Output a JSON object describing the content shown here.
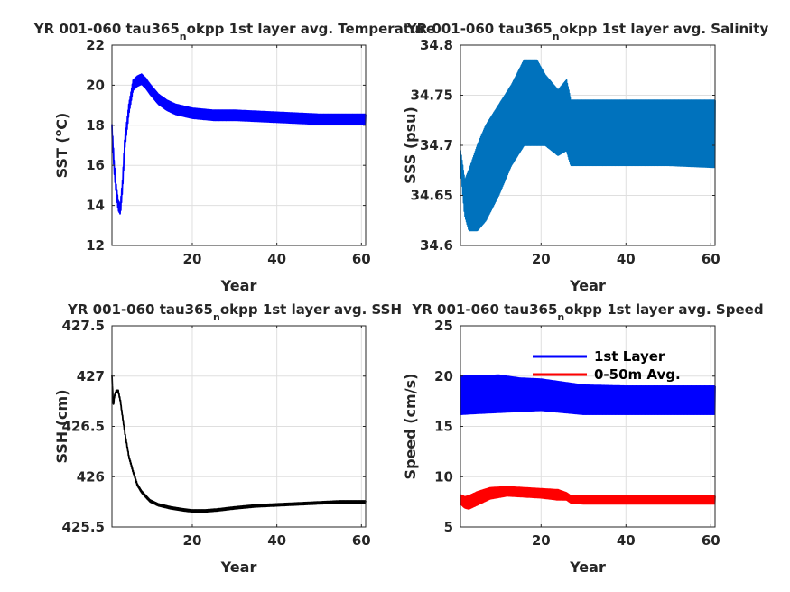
{
  "chart_data": [
    {
      "id": "sst",
      "type": "line",
      "title": "YR 001-060 tau365_nokpp 1st layer avg. Temperature",
      "title_parts": [
        "YR 001-060 tau365",
        "n",
        "okpp 1st layer avg. Temperature"
      ],
      "xlabel": "Year",
      "ylabel": "SST (°C)",
      "ylabel_parts": [
        "SST (",
        "o",
        "C)"
      ],
      "xlim": [
        1,
        61
      ],
      "ylim": [
        12,
        22
      ],
      "xticks": [
        20,
        40,
        60
      ],
      "yticks": [
        12,
        14,
        16,
        18,
        20,
        22
      ],
      "grid": true,
      "series": [
        {
          "color": "#0000ff",
          "oscillation": 0.25,
          "x": [
            1,
            1.5,
            2,
            2.5,
            3,
            3.5,
            4,
            5,
            6,
            7,
            8,
            9,
            10,
            12,
            14,
            16,
            20,
            25,
            30,
            40,
            50,
            61
          ],
          "y": [
            17.8,
            16,
            14.8,
            14,
            13.8,
            15,
            17,
            18.8,
            20,
            20.2,
            20.3,
            20.1,
            19.8,
            19.3,
            19,
            18.8,
            18.6,
            18.5,
            18.5,
            18.4,
            18.3,
            18.3
          ]
        }
      ]
    },
    {
      "id": "sss",
      "type": "line",
      "title": "YR 001-060 tau365_nokpp 1st layer avg. Salinity",
      "title_parts": [
        "YR 001-060 tau365",
        "n",
        "okpp 1st layer avg. Salinity"
      ],
      "xlabel": "Year",
      "ylabel": "SSS (psu)",
      "xlim": [
        1,
        61
      ],
      "ylim": [
        34.6,
        34.8
      ],
      "xticks": [
        20,
        40,
        60
      ],
      "yticks": [
        34.6,
        34.65,
        34.7,
        34.75,
        34.8
      ],
      "ytick_labels": [
        "34.6",
        "34.65",
        "34.7",
        "34.75",
        "34.8"
      ],
      "grid": true,
      "series": [
        {
          "color": "#0072bd",
          "x": [
            1,
            2,
            3,
            5,
            7,
            10,
            13,
            16,
            19,
            21,
            24,
            26,
            27,
            30,
            40,
            50,
            61
          ],
          "y_min": [
            34.68,
            34.63,
            34.615,
            34.615,
            34.625,
            34.65,
            34.68,
            34.7,
            34.7,
            34.7,
            34.69,
            34.695,
            34.68,
            34.68,
            34.68,
            34.68,
            34.678
          ],
          "y_max": [
            34.695,
            34.665,
            34.675,
            34.7,
            34.72,
            34.74,
            34.76,
            34.785,
            34.785,
            34.77,
            34.755,
            34.765,
            34.745,
            34.745,
            34.745,
            34.745,
            34.745
          ]
        }
      ]
    },
    {
      "id": "ssh",
      "type": "line",
      "title": "YR 001-060 tau365_nokpp 1st layer avg. SSH",
      "title_parts": [
        "YR 001-060 tau365",
        "n",
        "okpp 1st layer avg. SSH"
      ],
      "xlabel": "Year",
      "ylabel": "SSH (cm)",
      "xlim": [
        1,
        61
      ],
      "ylim": [
        425.5,
        427.5
      ],
      "xticks": [
        20,
        40,
        60
      ],
      "yticks": [
        425.5,
        426,
        426.5,
        427,
        427.5
      ],
      "ytick_labels": [
        "425.5",
        "426",
        "426.5",
        "427",
        "427.5"
      ],
      "grid": true,
      "series": [
        {
          "color": "#000000",
          "oscillation": 0.01,
          "x": [
            1,
            1.3,
            1.6,
            2,
            2.5,
            3,
            4,
            5,
            6,
            7,
            8,
            10,
            12,
            15,
            18,
            20,
            23,
            26,
            30,
            35,
            40,
            45,
            50,
            55,
            61
          ],
          "y": [
            427,
            426.7,
            426.8,
            426.85,
            426.85,
            426.75,
            426.45,
            426.2,
            426.05,
            425.92,
            425.85,
            425.76,
            425.72,
            425.69,
            425.67,
            425.66,
            425.66,
            425.67,
            425.69,
            425.71,
            425.72,
            425.73,
            425.74,
            425.75,
            425.75
          ]
        }
      ]
    },
    {
      "id": "speed",
      "type": "line",
      "title": "YR 001-060 tau365_nokpp 1st layer avg. Speed",
      "title_parts": [
        "YR 001-060 tau365",
        "n",
        "okpp 1st layer avg. Speed"
      ],
      "xlabel": "Year",
      "ylabel": "Speed (cm/s)",
      "xlim": [
        1,
        61
      ],
      "ylim": [
        5,
        25
      ],
      "xticks": [
        20,
        40,
        60
      ],
      "yticks": [
        5,
        10,
        15,
        20,
        25
      ],
      "grid": true,
      "legend_position": "top-right",
      "series": [
        {
          "name": "1st Layer",
          "color": "#0000ff",
          "x": [
            1,
            5,
            10,
            15,
            20,
            25,
            30,
            40,
            50,
            61
          ],
          "y_min": [
            16.2,
            16.3,
            16.4,
            16.5,
            16.6,
            16.4,
            16.2,
            16.2,
            16.2,
            16.2
          ],
          "y_max": [
            20,
            20,
            20.1,
            19.8,
            19.7,
            19.4,
            19.1,
            19,
            19,
            19
          ]
        },
        {
          "name": "0-50m Avg.",
          "color": "#ff0000",
          "x": [
            1,
            2,
            3,
            5,
            8,
            12,
            16,
            20,
            24,
            26,
            27,
            30,
            40,
            50,
            61
          ],
          "y_min": [
            7.3,
            6.9,
            6.8,
            7.2,
            7.8,
            8.1,
            8,
            7.9,
            7.7,
            7.7,
            7.4,
            7.3,
            7.3,
            7.3,
            7.3
          ],
          "y_max": [
            8.2,
            8,
            8.1,
            8.5,
            8.9,
            9,
            8.9,
            8.8,
            8.7,
            8.4,
            8.1,
            8.1,
            8.1,
            8.1,
            8.1
          ]
        }
      ]
    }
  ]
}
